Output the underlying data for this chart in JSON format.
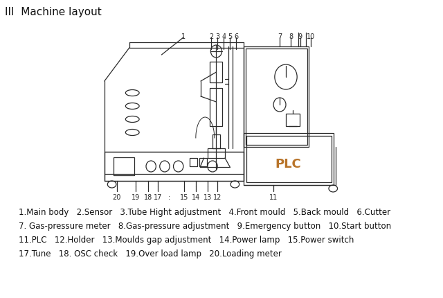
{
  "title": "III  Machine layout",
  "background_color": "#ffffff",
  "legend_lines": [
    "1.Main body   2.Sensor   3.Tube Hight adjustment   4.Front mould   5.Back mould   6.Cutter",
    "7. Gas-pressure meter   8.Gas-pressure adjustment   9.Emergency button   10.Start button",
    "11.PLC   12.Holder   13.Moulds gap adjustment   14.Power lamp   15.Power switch",
    "17.Tune   18. OSC check   19.Over load lamp   20.Loading meter"
  ],
  "legend_fontsize": 8.5,
  "drawing_color": "#2a2a2a",
  "plc_color": "#b8742a"
}
